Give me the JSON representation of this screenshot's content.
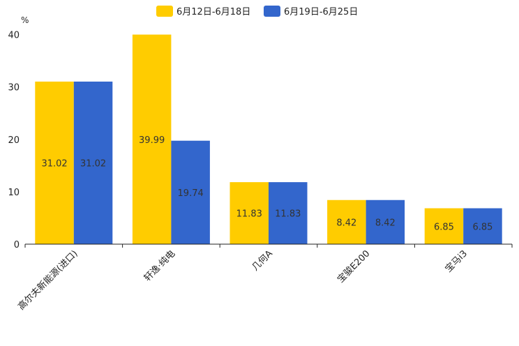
{
  "chart_data": {
    "type": "bar",
    "y_unit": "%",
    "categories": [
      "高尔夫新能源(进口)",
      "轩逸·纯电",
      "几何A",
      "宝骏E200",
      "宝马i3"
    ],
    "series": [
      {
        "name": "6月12日-6月18日",
        "color": "#FFCC00",
        "values": [
          31.02,
          39.99,
          11.83,
          8.42,
          6.85
        ],
        "labels": [
          "31.02",
          "39.99",
          "11.83",
          "8.42",
          "6.85"
        ]
      },
      {
        "name": "6月19日-6月25日",
        "color": "#3366CC",
        "values": [
          31.02,
          19.74,
          11.83,
          8.42,
          6.85
        ],
        "labels": [
          "31.02",
          "19.74",
          "11.83",
          "8.42",
          "6.85"
        ]
      }
    ],
    "ylim": [
      0,
      42
    ],
    "yticks": [
      "0",
      "10",
      "20",
      "30",
      "40"
    ],
    "legend_position": "top-center",
    "grid": false
  }
}
